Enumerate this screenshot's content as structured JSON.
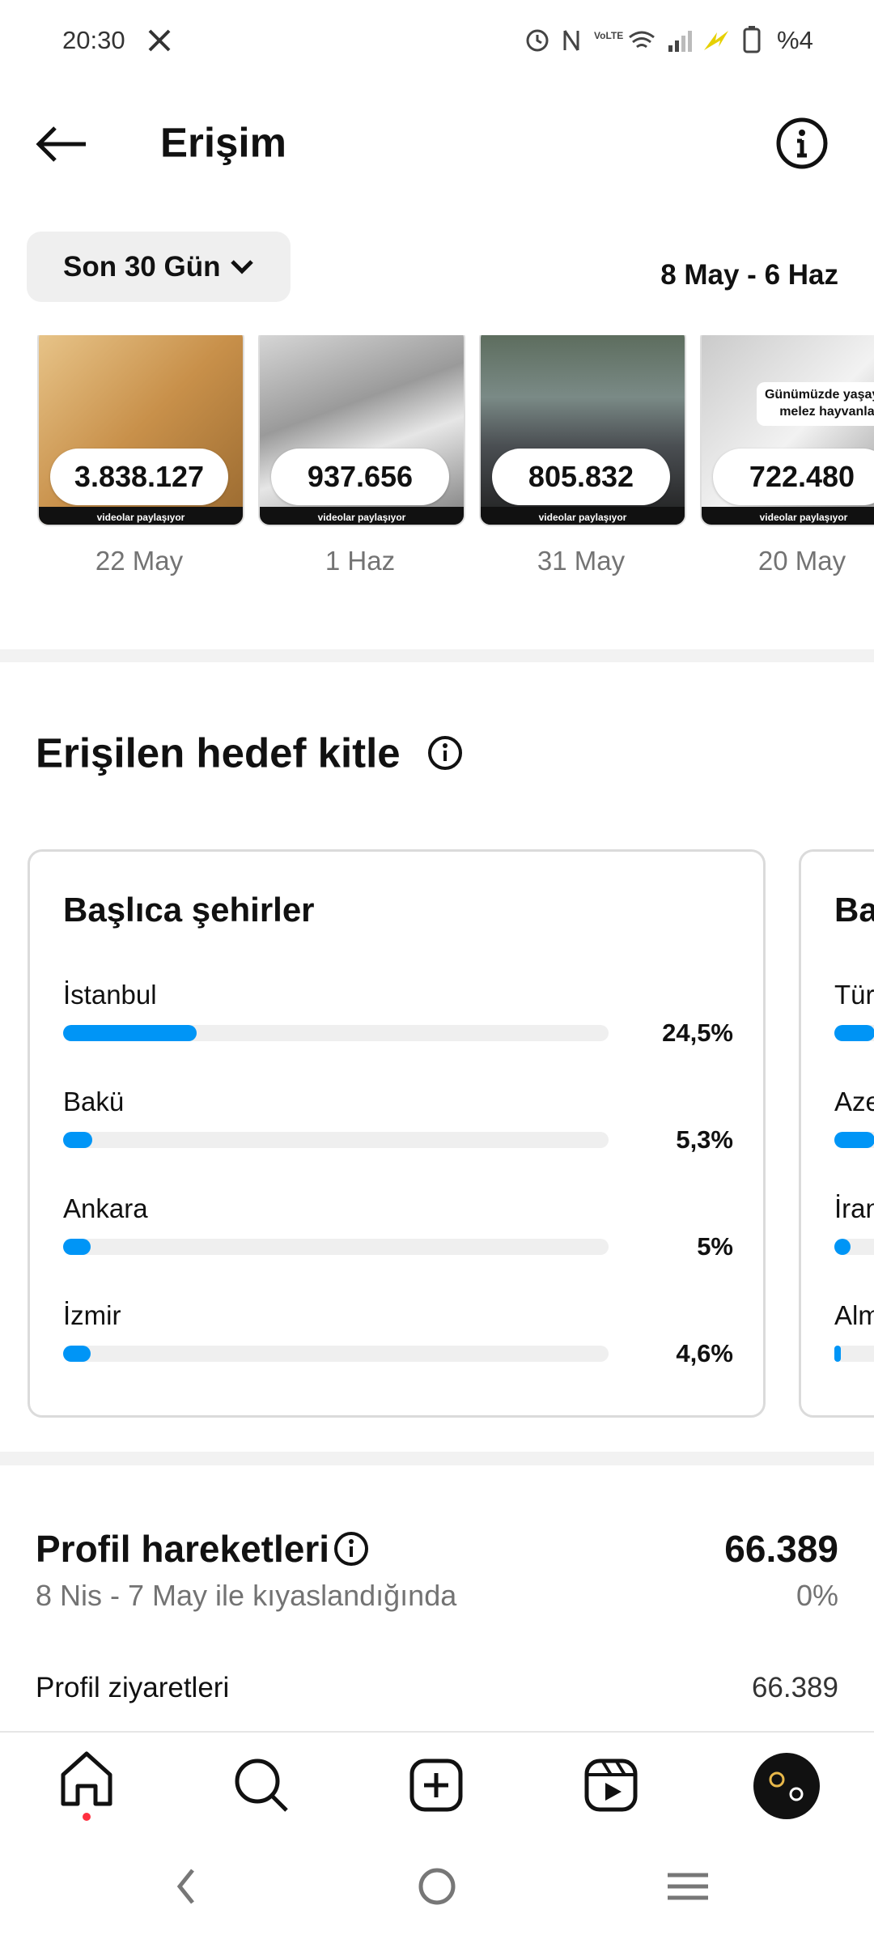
{
  "status_bar": {
    "time": "20:30",
    "battery": "%4"
  },
  "header": {
    "title": "Erişim"
  },
  "filter": {
    "period": "Son 30 Gün",
    "date_range": "8 May - 6 Haz"
  },
  "posts": [
    {
      "value": "3.838.127",
      "date": "22 May",
      "footer": "videolar paylaşıyor"
    },
    {
      "value": "937.656",
      "date": "1 Haz",
      "footer": "videolar paylaşıyor"
    },
    {
      "value": "805.832",
      "date": "31 May",
      "footer": "videolar paylaşıyor"
    },
    {
      "value": "722.480",
      "date": "20 May",
      "footer": "videolar paylaşıyor",
      "caption": [
        "Günümüzde yaşayan",
        "melez hayvanlar"
      ]
    }
  ],
  "audience": {
    "title": "Erişilen hedef kitle",
    "cards": [
      {
        "title": "Başlıca şehirler",
        "rows": [
          {
            "label": "İstanbul",
            "value": "24,5%"
          },
          {
            "label": "Bakü",
            "value": "5,3%"
          },
          {
            "label": "Ankara",
            "value": "5%"
          },
          {
            "label": "İzmir",
            "value": "4,6%"
          }
        ]
      },
      {
        "title": "Ba",
        "rows": [
          {
            "label": "Türk"
          },
          {
            "label": "Aze"
          },
          {
            "label": "İran"
          },
          {
            "label": "Alm"
          }
        ]
      }
    ]
  },
  "profile": {
    "title": "Profil hareketleri",
    "total": "66.389",
    "comparison": "8 Nis - 7 May ile kıyaslandığında",
    "change": "0%",
    "rows": [
      {
        "label": "Profil ziyaretleri",
        "value": "66.389"
      }
    ]
  }
}
